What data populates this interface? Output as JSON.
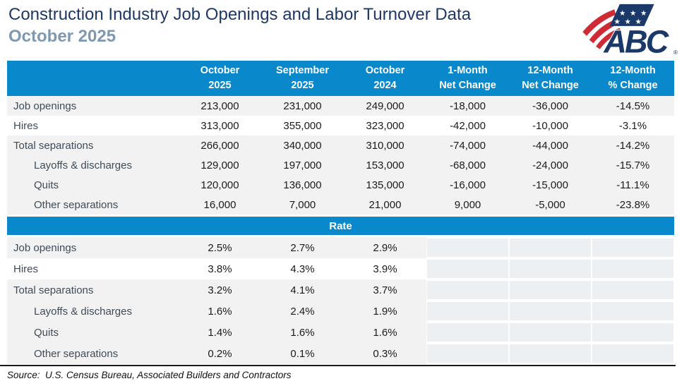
{
  "source_note": "Source:  U.S. Census Bureau, Associated Builders and Contractors",
  "logo": {
    "text": "ABC",
    "registered_mark": "®"
  },
  "colors": {
    "header_blue": "#0989cb",
    "row_gray": "#f2f2f2",
    "empty_cell": "#ecf0f3",
    "title_navy": "#1f3864",
    "subtitle_slate": "#7e98b1",
    "label_text": "#3e4c59",
    "number_text": "#1b1b1b",
    "logo_navy": "#1b3968",
    "logo_red": "#ce2b37"
  },
  "chart_data": {
    "type": "table",
    "title": "Construction Industry Job Openings and Labor Turnover Data",
    "subtitle": "October 2025",
    "columns": [
      "October\n2025",
      "September\n2025",
      "October\n2024",
      "1-Month\nNet Change",
      "12-Month\nNet Change",
      "12-Month\n% Change"
    ],
    "sections": [
      {
        "id": "counts",
        "label": "",
        "rows": [
          {
            "label": "Job openings",
            "indent": false,
            "shade": "gray",
            "values": [
              "213,000",
              "231,000",
              "249,000",
              "-18,000",
              "-36,000",
              "-14.5%"
            ]
          },
          {
            "label": "Hires",
            "indent": false,
            "shade": "white",
            "values": [
              "313,000",
              "355,000",
              "323,000",
              "-42,000",
              "-10,000",
              "-3.1%"
            ]
          },
          {
            "label": "Total separations",
            "indent": false,
            "shade": "gray",
            "values": [
              "266,000",
              "340,000",
              "310,000",
              "-74,000",
              "-44,000",
              "-14.2%"
            ]
          },
          {
            "label": "Layoffs & discharges",
            "indent": true,
            "shade": "gray",
            "values": [
              "129,000",
              "197,000",
              "153,000",
              "-68,000",
              "-24,000",
              "-15.7%"
            ]
          },
          {
            "label": "Quits",
            "indent": true,
            "shade": "gray",
            "values": [
              "120,000",
              "136,000",
              "135,000",
              "-16,000",
              "-15,000",
              "-11.1%"
            ]
          },
          {
            "label": "Other separations",
            "indent": true,
            "shade": "gray",
            "values": [
              "16,000",
              "7,000",
              "21,000",
              "9,000",
              "-5,000",
              "-23.8%"
            ]
          }
        ]
      },
      {
        "id": "rates",
        "label": "Rate",
        "rows": [
          {
            "label": "Job openings",
            "indent": false,
            "shade": "gray",
            "values": [
              "2.5%",
              "2.7%",
              "2.9%",
              "",
              "",
              ""
            ]
          },
          {
            "label": "Hires",
            "indent": false,
            "shade": "white",
            "values": [
              "3.8%",
              "4.3%",
              "3.9%",
              "",
              "",
              ""
            ]
          },
          {
            "label": "Total separations",
            "indent": false,
            "shade": "gray",
            "values": [
              "3.2%",
              "4.1%",
              "3.7%",
              "",
              "",
              ""
            ]
          },
          {
            "label": "Layoffs & discharges",
            "indent": true,
            "shade": "gray",
            "values": [
              "1.6%",
              "2.4%",
              "1.9%",
              "",
              "",
              ""
            ]
          },
          {
            "label": "Quits",
            "indent": true,
            "shade": "gray",
            "values": [
              "1.4%",
              "1.6%",
              "1.6%",
              "",
              "",
              ""
            ]
          },
          {
            "label": "Other separations",
            "indent": true,
            "shade": "gray",
            "values": [
              "0.2%",
              "0.1%",
              "0.3%",
              "",
              "",
              ""
            ]
          }
        ]
      }
    ]
  }
}
